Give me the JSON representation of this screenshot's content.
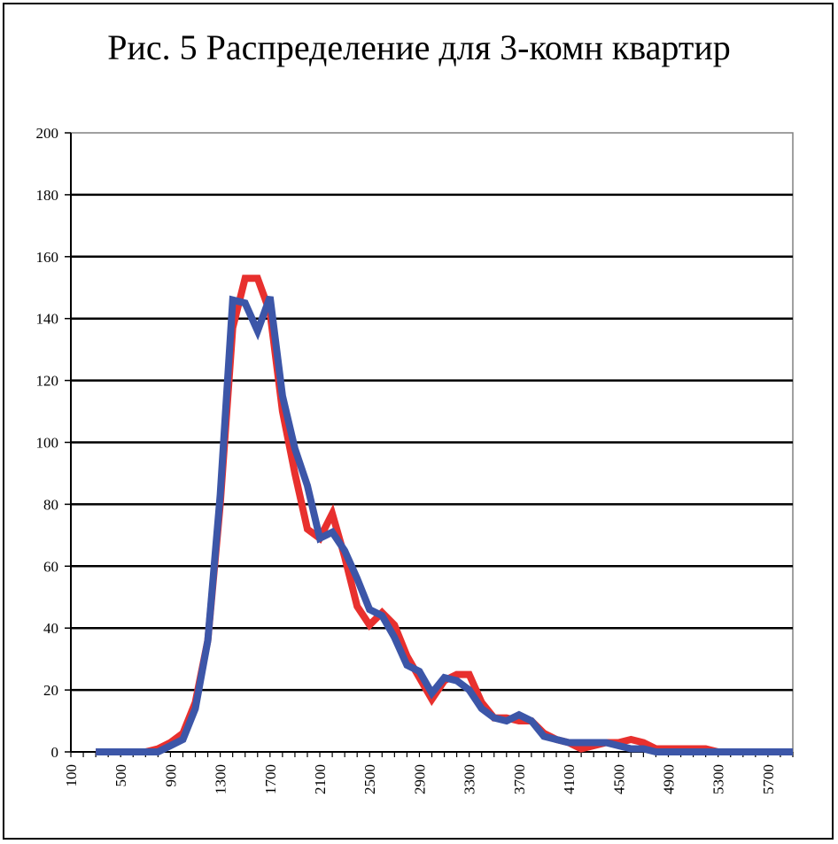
{
  "chart_data": {
    "type": "line",
    "title": "Рис. 5 Распределение для 3-комн квартир",
    "xlabel": "",
    "ylabel": "",
    "ylim": [
      0,
      200
    ],
    "yticks": [
      "0",
      "20",
      "40",
      "60",
      "80",
      "100",
      "120",
      "140",
      "160",
      "180",
      "200"
    ],
    "xticks": [
      "100",
      "500",
      "900",
      "1300",
      "1700",
      "2100",
      "2500",
      "2900",
      "3300",
      "3700",
      "4100",
      "4500",
      "4900",
      "5300",
      "5700"
    ],
    "grid": "horizontal",
    "legend": "none",
    "x": [
      300,
      400,
      500,
      600,
      700,
      800,
      900,
      1000,
      1100,
      1200,
      1300,
      1400,
      1500,
      1600,
      1700,
      1800,
      1900,
      2000,
      2100,
      2200,
      2300,
      2400,
      2500,
      2600,
      2700,
      2800,
      2900,
      3000,
      3100,
      3200,
      3300,
      3400,
      3500,
      3600,
      3700,
      3800,
      3900,
      4000,
      4100,
      4200,
      4300,
      4400,
      4500,
      4600,
      4700,
      4800,
      4900,
      5000,
      5100,
      5200,
      5300,
      5400,
      5500,
      5600,
      5700,
      5800,
      5900
    ],
    "series": [
      {
        "color": "#e8302e",
        "values": [
          0,
          0,
          0,
          0,
          0,
          1,
          3,
          6,
          16,
          36,
          80,
          137,
          153,
          153,
          142,
          110,
          90,
          72,
          69,
          77,
          63,
          47,
          41,
          45,
          41,
          31,
          24,
          17,
          23,
          25,
          25,
          16,
          11,
          11,
          10,
          10,
          6,
          4,
          3,
          1,
          2,
          3,
          3,
          4,
          3,
          1,
          1,
          1,
          1,
          1,
          0,
          0,
          0,
          0,
          0,
          0,
          0
        ]
      },
      {
        "color": "#3c56a8",
        "values": [
          0,
          0,
          0,
          0,
          0,
          0,
          2,
          4,
          14,
          36,
          83,
          146,
          145,
          136,
          147,
          115,
          98,
          86,
          69,
          71,
          65,
          56,
          46,
          44,
          37,
          28,
          26,
          19,
          24,
          23,
          20,
          14,
          11,
          10,
          12,
          10,
          5,
          4,
          3,
          3,
          3,
          3,
          2,
          1,
          1,
          0,
          0,
          0,
          0,
          0,
          0,
          0,
          0,
          0,
          0,
          0,
          0
        ]
      }
    ]
  }
}
